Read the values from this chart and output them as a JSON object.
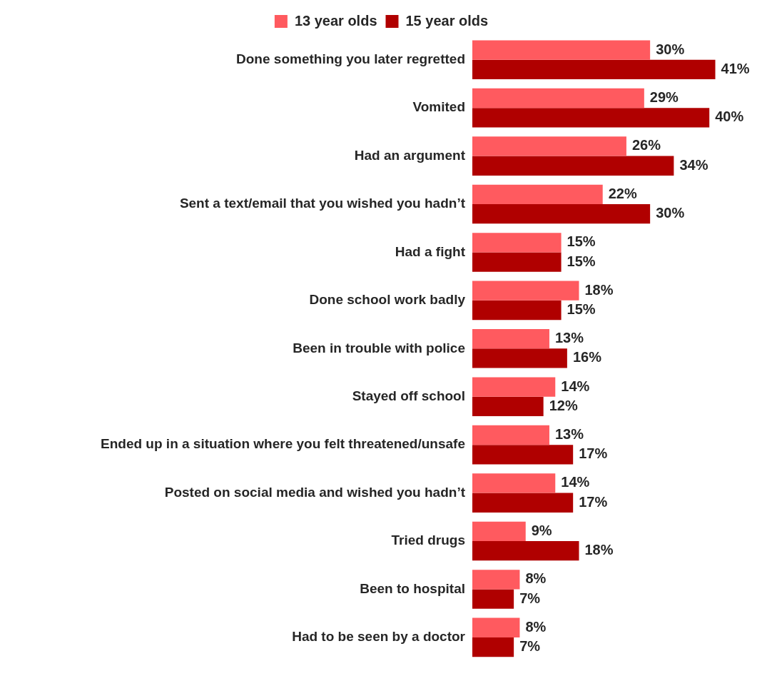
{
  "chart_data": {
    "type": "bar",
    "orientation": "horizontal",
    "legend": "top",
    "grid": false,
    "tick_labels": "y",
    "categories": [
      "Done something you later regretted",
      "Vomited",
      "Had an argument",
      "Sent a text/email that you wished you hadn’t",
      "Had a fight",
      "Done school work badly",
      "Been in trouble with police",
      "Stayed off school",
      "Ended up in a situation where you felt threatened/unsafe",
      "Posted on social media and wished you hadn’t",
      "Tried drugs",
      "Been to hospital",
      "Had to be seen by a doctor"
    ],
    "series": [
      {
        "name": "13 year olds",
        "color": "#ff5a5f",
        "values": [
          30,
          29,
          26,
          22,
          15,
          18,
          13,
          14,
          13,
          14,
          9,
          8,
          8
        ],
        "value_labels": [
          "30%",
          "29%",
          "26%",
          "22%",
          "15%",
          "18%",
          "13%",
          "14%",
          "13%",
          "14%",
          "9%",
          "8%",
          "8%"
        ]
      },
      {
        "name": "15 year olds",
        "color": "#b00000",
        "values": [
          41,
          40,
          34,
          30,
          15,
          15,
          16,
          12,
          17,
          17,
          18,
          7,
          7
        ],
        "value_labels": [
          "41%",
          "40%",
          "34%",
          "30%",
          "15%",
          "15%",
          "16%",
          "12%",
          "17%",
          "17%",
          "18%",
          "7%",
          "7%"
        ]
      }
    ]
  }
}
